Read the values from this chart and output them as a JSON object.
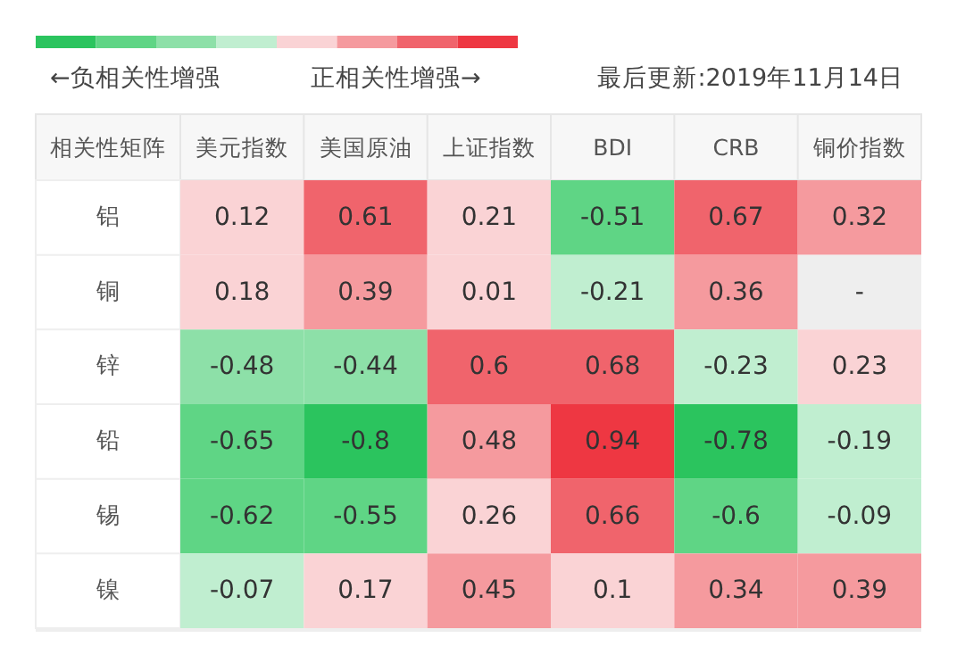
{
  "chart_data": {
    "type": "heatmap",
    "ylabel": "相关性矩阵",
    "categories": [
      "美元指数",
      "美国原油",
      "上证指数",
      "BDI",
      "CRB",
      "铜价指数"
    ],
    "y_categories": [
      "铝",
      "铜",
      "锌",
      "铅",
      "锡",
      "镍"
    ],
    "cells": [
      [
        0.12,
        0.61,
        0.21,
        -0.51,
        0.67,
        0.32
      ],
      [
        0.18,
        0.39,
        0.01,
        -0.21,
        0.36,
        null
      ],
      [
        -0.48,
        -0.44,
        0.6,
        0.68,
        -0.23,
        0.23
      ],
      [
        -0.65,
        -0.8,
        0.48,
        0.94,
        -0.78,
        -0.19
      ],
      [
        -0.62,
        -0.55,
        0.26,
        0.66,
        -0.6,
        -0.09
      ],
      [
        -0.07,
        0.17,
        0.45,
        0.1,
        0.34,
        0.39
      ]
    ],
    "cell_labels": [
      [
        "0.12",
        "0.61",
        "0.21",
        "-0.51",
        "0.67",
        "0.32"
      ],
      [
        "0.18",
        "0.39",
        "0.01",
        "-0.21",
        "0.36",
        "-"
      ],
      [
        "-0.48",
        "-0.44",
        "0.6",
        "0.68",
        "-0.23",
        "0.23"
      ],
      [
        "-0.65",
        "-0.8",
        "0.48",
        "0.94",
        "-0.78",
        "-0.19"
      ],
      [
        "-0.62",
        "-0.55",
        "0.26",
        "0.66",
        "-0.6",
        "-0.09"
      ],
      [
        "-0.07",
        "0.17",
        "0.45",
        "0.1",
        "0.34",
        "0.39"
      ]
    ],
    "colors": [
      [
        "#fad3d5",
        "#f0646c",
        "#fad3d5",
        "#5fd585",
        "#f0646c",
        "#f59a9e"
      ],
      [
        "#fad3d5",
        "#f59a9e",
        "#fad3d5",
        "#c0eed0",
        "#f59a9e",
        "#eeeeee"
      ],
      [
        "#8de0a8",
        "#8de0a8",
        "#f0646c",
        "#f0646c",
        "#c0eed0",
        "#fad3d5"
      ],
      [
        "#5fd585",
        "#2bc45e",
        "#f59a9e",
        "#ee3742",
        "#2bc45e",
        "#c0eed0"
      ],
      [
        "#5fd585",
        "#5fd585",
        "#fad3d5",
        "#f0646c",
        "#5fd585",
        "#c0eed0"
      ],
      [
        "#c0eed0",
        "#fad3d5",
        "#f59a9e",
        "#fad3d5",
        "#f59a9e",
        "#f59a9e"
      ]
    ],
    "annotations": [
      "←负相关性增强",
      "正相关性增强→",
      "最后更新:2019年11月14日"
    ],
    "data_labels": true
  }
}
